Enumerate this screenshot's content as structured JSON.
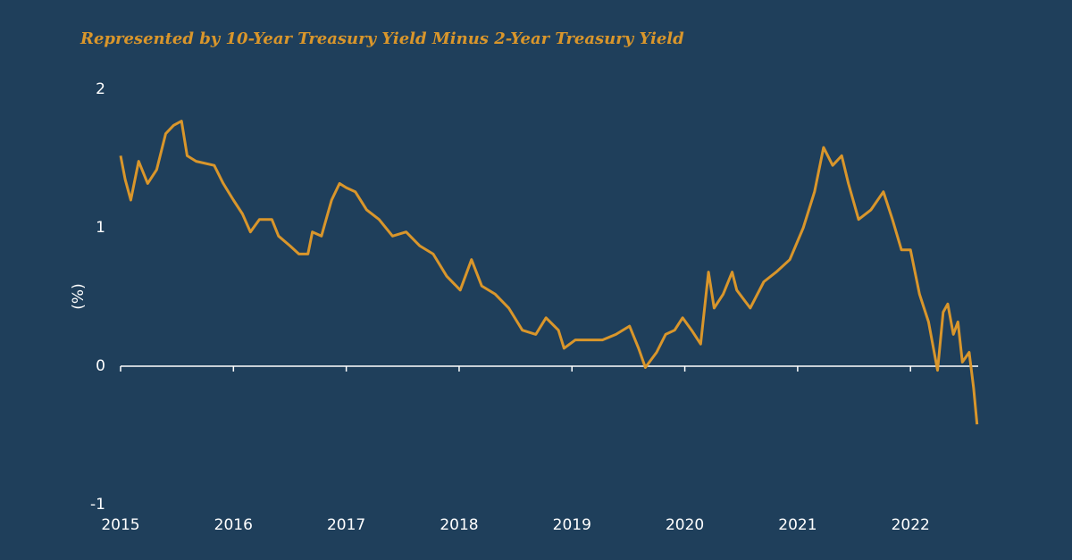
{
  "chart_data": {
    "type": "line",
    "title": "Represented by 10-Year Treasury Yield Minus 2-Year Treasury Yield",
    "y_label": "(%)",
    "xlim": [
      2015,
      2022.6
    ],
    "xticks": [
      2015,
      2016,
      2017,
      2018,
      2019,
      2020,
      2021,
      2022
    ],
    "ylim": [
      -1,
      2
    ],
    "yticks": [
      -1,
      0,
      1,
      2
    ],
    "grid": false,
    "series": [
      {
        "color": "#d9962b",
        "x": [
          2015.0,
          2015.04,
          2015.09,
          2015.16,
          2015.24,
          2015.32,
          2015.4,
          2015.47,
          2015.54,
          2015.59,
          2015.67,
          2015.83,
          2015.91,
          2016.0,
          2016.08,
          2016.15,
          2016.23,
          2016.34,
          2016.4,
          2016.5,
          2016.58,
          2016.66,
          2016.7,
          2016.78,
          2016.87,
          2016.94,
          2017.0,
          2017.08,
          2017.18,
          2017.29,
          2017.41,
          2017.53,
          2017.65,
          2017.77,
          2017.89,
          2018.01,
          2018.11,
          2018.2,
          2018.32,
          2018.44,
          2018.56,
          2018.68,
          2018.77,
          2018.88,
          2018.93,
          2019.03,
          2019.15,
          2019.27,
          2019.39,
          2019.51,
          2019.59,
          2019.65,
          2019.75,
          2019.83,
          2019.91,
          2019.98,
          2020.06,
          2020.14,
          2020.21,
          2020.26,
          2020.34,
          2020.42,
          2020.46,
          2020.58,
          2020.7,
          2020.81,
          2020.93,
          2021.05,
          2021.15,
          2021.23,
          2021.31,
          2021.39,
          2021.45,
          2021.54,
          2021.65,
          2021.76,
          2021.84,
          2021.92,
          2022.0,
          2022.08,
          2022.16,
          2022.24,
          2022.29,
          2022.33,
          2022.38,
          2022.42,
          2022.46,
          2022.52,
          2022.56,
          2022.59
        ],
        "values": [
          1.52,
          1.35,
          1.2,
          1.48,
          1.32,
          1.42,
          1.68,
          1.74,
          1.77,
          1.52,
          1.48,
          1.45,
          1.32,
          1.2,
          1.1,
          0.97,
          1.06,
          1.06,
          0.94,
          0.87,
          0.81,
          0.81,
          0.97,
          0.94,
          1.2,
          1.32,
          1.29,
          1.26,
          1.13,
          1.06,
          0.94,
          0.97,
          0.87,
          0.81,
          0.65,
          0.55,
          0.77,
          0.58,
          0.52,
          0.42,
          0.26,
          0.23,
          0.35,
          0.26,
          0.13,
          0.19,
          0.19,
          0.19,
          0.23,
          0.29,
          0.13,
          -0.01,
          0.1,
          0.23,
          0.26,
          0.35,
          0.26,
          0.16,
          0.68,
          0.42,
          0.52,
          0.68,
          0.55,
          0.42,
          0.61,
          0.68,
          0.77,
          1.0,
          1.26,
          1.58,
          1.45,
          1.52,
          1.32,
          1.06,
          1.13,
          1.26,
          1.06,
          0.84,
          0.84,
          0.52,
          0.32,
          -0.03,
          0.39,
          0.45,
          0.23,
          0.32,
          0.03,
          0.1,
          -0.16,
          -0.42
        ]
      }
    ]
  }
}
